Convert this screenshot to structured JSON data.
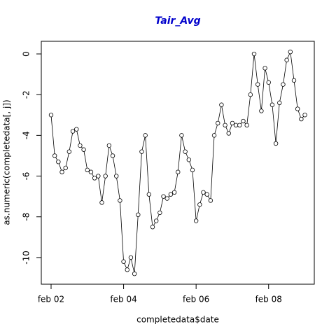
{
  "chart_data": {
    "type": "line",
    "title": "Tair_Avg",
    "x_label": "completedata$date",
    "y_label": "as.numeric(completedata[, j])",
    "x": [
      2.0,
      2.1,
      2.2,
      2.3,
      2.4,
      2.5,
      2.6,
      2.7,
      2.8,
      2.9,
      3.0,
      3.1,
      3.2,
      3.3,
      3.4,
      3.5,
      3.6,
      3.7,
      3.8,
      3.9,
      4.0,
      4.1,
      4.2,
      4.3,
      4.4,
      4.5,
      4.6,
      4.7,
      4.8,
      4.9,
      5.0,
      5.1,
      5.2,
      5.3,
      5.4,
      5.5,
      5.6,
      5.7,
      5.8,
      5.9,
      6.0,
      6.1,
      6.2,
      6.3,
      6.4,
      6.5,
      6.6,
      6.7,
      6.8,
      6.9,
      7.0,
      7.1,
      7.2,
      7.3,
      7.4,
      7.5,
      7.6,
      7.7,
      7.8,
      7.9,
      8.0,
      8.1,
      8.2,
      8.3,
      8.4,
      8.5,
      8.6,
      8.7,
      8.8,
      8.9,
      9.0
    ],
    "values": [
      -3.0,
      -5.0,
      -5.3,
      -5.8,
      -5.6,
      -4.8,
      -3.8,
      -3.7,
      -4.5,
      -4.7,
      -5.7,
      -5.8,
      -6.1,
      -6.0,
      -7.3,
      -6.0,
      -4.5,
      -5.0,
      -6.0,
      -7.2,
      -10.2,
      -10.6,
      -10.0,
      -10.8,
      -7.9,
      -4.8,
      -4.0,
      -6.9,
      -8.5,
      -8.2,
      -7.8,
      -7.0,
      -7.1,
      -6.9,
      -6.8,
      -5.8,
      -4.0,
      -4.8,
      -5.2,
      -5.7,
      -8.2,
      -7.4,
      -6.8,
      -6.9,
      -7.2,
      -4.0,
      -3.4,
      -2.5,
      -3.5,
      -3.9,
      -3.4,
      -3.5,
      -3.5,
      -3.3,
      -3.5,
      -2.0,
      0.0,
      -1.5,
      -2.8,
      -0.7,
      -1.4,
      -2.5,
      -4.4,
      -2.4,
      -1.5,
      -0.3,
      0.1,
      -1.3,
      -2.7,
      -3.2,
      -3.0
    ],
    "color": "#000000",
    "xlim": [
      1.73,
      9.26
    ],
    "xticks": [
      {
        "value": 2,
        "label": "feb 02"
      },
      {
        "value": 4,
        "label": "feb 04"
      },
      {
        "value": 6,
        "label": "feb 06"
      },
      {
        "value": 8,
        "label": "feb 08"
      }
    ],
    "ylim": [
      -11.31,
      0.62
    ],
    "yticks": [
      -10,
      -8,
      -6,
      -4,
      -2,
      0
    ]
  }
}
